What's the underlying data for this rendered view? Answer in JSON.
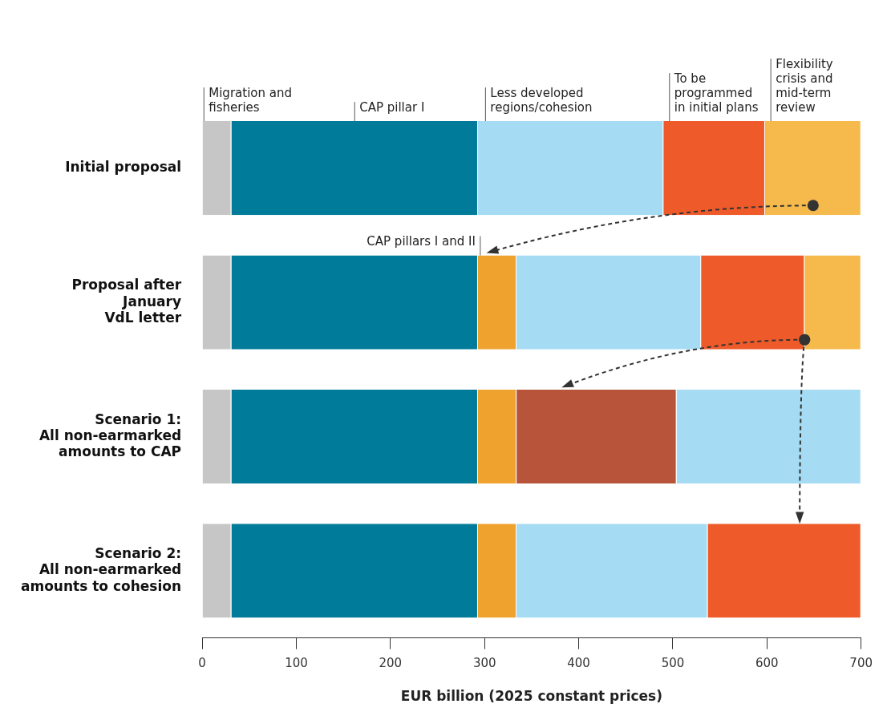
{
  "chart_data": {
    "type": "bar",
    "orientation": "horizontal",
    "stacked": true,
    "xlabel": "EUR billion (2025 constant prices)",
    "categories": [
      "Initial proposal",
      "Proposal after\nJanuary\nVdL letter",
      "Scenario 1:\nAll non-earmarked\namounts to CAP",
      "Scenario 2:\nAll non-earmarked\namounts to cohesion"
    ],
    "xlim": [
      0,
      700
    ],
    "xticks": [
      0,
      100,
      200,
      300,
      400,
      500,
      600,
      700
    ],
    "grid": false,
    "legend": false,
    "series": [
      {
        "name": "Migration and fisheries",
        "color": "#c6c6c6",
        "values": [
          31,
          31,
          31,
          31
        ]
      },
      {
        "name": "CAP pillar I",
        "color": "#007b9a",
        "values": [
          262,
          262,
          262,
          262
        ]
      },
      {
        "name": "CAP pillars I and II",
        "color": "#f0a22e",
        "values": [
          null,
          41,
          41,
          41
        ]
      },
      {
        "color": "#b8543a",
        "values": [
          null,
          null,
          170,
          null
        ]
      },
      {
        "name": "Less developed regions/cohesion",
        "color": "#a5dbf3",
        "values": [
          197,
          196,
          196,
          203
        ]
      },
      {
        "name": "To be programmed in initial plans",
        "color": "#ee5a2a",
        "values": [
          108,
          110,
          null,
          163
        ]
      },
      {
        "name": "Flexibility crisis and mid-term review",
        "color": "#f6b94c",
        "values": [
          102,
          60,
          null,
          null
        ]
      }
    ]
  }
}
